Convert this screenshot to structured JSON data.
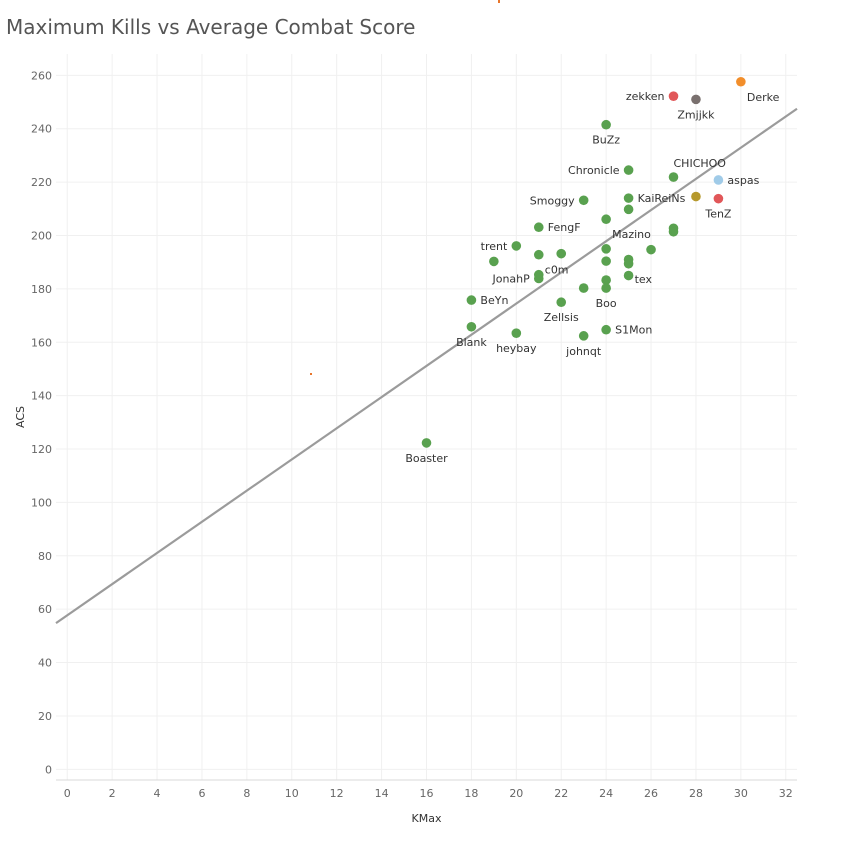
{
  "title": "Maximum Kills vs Average Combat Score",
  "colors": {
    "default": "#59a14f",
    "trend": "#9b9b9b",
    "grid": "#f0f0f0",
    "axis": "#d9d9d9",
    "stray_mark": "#e15759"
  },
  "chart_data": {
    "type": "scatter",
    "title": "Maximum Kills vs Average Combat Score",
    "xlabel": "KMax",
    "ylabel": "ACS",
    "xlim": [
      -0.5,
      32.5
    ],
    "ylim": [
      -4,
      268
    ],
    "xticks": [
      0,
      2,
      4,
      6,
      8,
      10,
      12,
      14,
      16,
      18,
      20,
      22,
      24,
      26,
      28,
      30,
      32
    ],
    "yticks": [
      0,
      20,
      40,
      60,
      80,
      100,
      120,
      140,
      160,
      180,
      200,
      220,
      240,
      260
    ],
    "grid": true,
    "trendline": {
      "slope": 5.84,
      "intercept": 57.7
    },
    "points": [
      {
        "x": 30,
        "y": 257.6,
        "label": "Derke",
        "color": "#f28e2b",
        "label_pos": "below-right"
      },
      {
        "x": 27,
        "y": 252.2,
        "label": "zekken",
        "color": "#e15759",
        "label_pos": "left"
      },
      {
        "x": 28,
        "y": 251.0,
        "label": "Zmjjkk",
        "color": "#79706e",
        "label_pos": "below"
      },
      {
        "x": 24,
        "y": 241.5,
        "label": "BuZz",
        "color": "#59a14f",
        "label_pos": "below"
      },
      {
        "x": 25,
        "y": 224.5,
        "label": "Chronicle",
        "color": "#59a14f",
        "label_pos": "left"
      },
      {
        "x": 27,
        "y": 221.9,
        "label": "CHICHOO",
        "color": "#59a14f",
        "label_pos": "above-right"
      },
      {
        "x": 29,
        "y": 220.8,
        "label": "aspas",
        "color": "#a0cbe8",
        "label_pos": "right"
      },
      {
        "x": 28,
        "y": 214.6,
        "label": "",
        "color": "#b6992d",
        "label_pos": "none"
      },
      {
        "x": 29,
        "y": 213.8,
        "label": "TenZ",
        "color": "#e15759",
        "label_pos": "below"
      },
      {
        "x": 25,
        "y": 214.0,
        "label": "KaiReiNs",
        "color": "#59a14f",
        "label_pos": "right"
      },
      {
        "x": 23,
        "y": 213.2,
        "label": "Smoggy",
        "color": "#59a14f",
        "label_pos": "left"
      },
      {
        "x": 25,
        "y": 209.8,
        "label": "",
        "color": "#59a14f",
        "label_pos": "none"
      },
      {
        "x": 24,
        "y": 206.1,
        "label": "Mazino",
        "color": "#59a14f",
        "label_pos": "below-right"
      },
      {
        "x": 21,
        "y": 203.1,
        "label": "FengF",
        "color": "#59a14f",
        "label_pos": "right"
      },
      {
        "x": 27,
        "y": 202.7,
        "label": "",
        "color": "#59a14f",
        "label_pos": "none"
      },
      {
        "x": 27,
        "y": 201.4,
        "label": "",
        "color": "#59a14f",
        "label_pos": "none"
      },
      {
        "x": 20,
        "y": 196.1,
        "label": "trent",
        "color": "#59a14f",
        "label_pos": "left"
      },
      {
        "x": 24,
        "y": 195.0,
        "label": "",
        "color": "#59a14f",
        "label_pos": "none"
      },
      {
        "x": 26,
        "y": 194.7,
        "label": "",
        "color": "#59a14f",
        "label_pos": "none"
      },
      {
        "x": 22,
        "y": 193.2,
        "label": "",
        "color": "#59a14f",
        "label_pos": "none"
      },
      {
        "x": 21,
        "y": 192.8,
        "label": "c0m",
        "color": "#59a14f",
        "label_pos": "below-right"
      },
      {
        "x": 25,
        "y": 191.0,
        "label": "",
        "color": "#59a14f",
        "label_pos": "none"
      },
      {
        "x": 19,
        "y": 190.3,
        "label": "",
        "color": "#59a14f",
        "label_pos": "none"
      },
      {
        "x": 24,
        "y": 190.4,
        "label": "",
        "color": "#59a14f",
        "label_pos": "none"
      },
      {
        "x": 25,
        "y": 189.4,
        "label": "tex",
        "color": "#59a14f",
        "label_pos": "below-right"
      },
      {
        "x": 21,
        "y": 185.3,
        "label": "",
        "color": "#59a14f",
        "label_pos": "none"
      },
      {
        "x": 25,
        "y": 185.0,
        "label": "",
        "color": "#59a14f",
        "label_pos": "none"
      },
      {
        "x": 21,
        "y": 183.9,
        "label": "JonahP",
        "color": "#59a14f",
        "label_pos": "left"
      },
      {
        "x": 24,
        "y": 183.3,
        "label": "",
        "color": "#59a14f",
        "label_pos": "none"
      },
      {
        "x": 23,
        "y": 180.3,
        "label": "",
        "color": "#59a14f",
        "label_pos": "none"
      },
      {
        "x": 24,
        "y": 180.3,
        "label": "Boo",
        "color": "#59a14f",
        "label_pos": "below"
      },
      {
        "x": 18,
        "y": 175.8,
        "label": "BeYn",
        "color": "#59a14f",
        "label_pos": "right"
      },
      {
        "x": 22,
        "y": 175.0,
        "label": "Zellsis",
        "color": "#59a14f",
        "label_pos": "below"
      },
      {
        "x": 18,
        "y": 165.8,
        "label": "Blank",
        "color": "#59a14f",
        "label_pos": "below"
      },
      {
        "x": 24,
        "y": 164.7,
        "label": "S1Mon",
        "color": "#59a14f",
        "label_pos": "right"
      },
      {
        "x": 20,
        "y": 163.4,
        "label": "heybay",
        "color": "#59a14f",
        "label_pos": "below"
      },
      {
        "x": 23,
        "y": 162.4,
        "label": "johnqt",
        "color": "#59a14f",
        "label_pos": "below"
      },
      {
        "x": 16,
        "y": 122.3,
        "label": "Boaster",
        "color": "#59a14f",
        "label_pos": "below"
      }
    ]
  }
}
